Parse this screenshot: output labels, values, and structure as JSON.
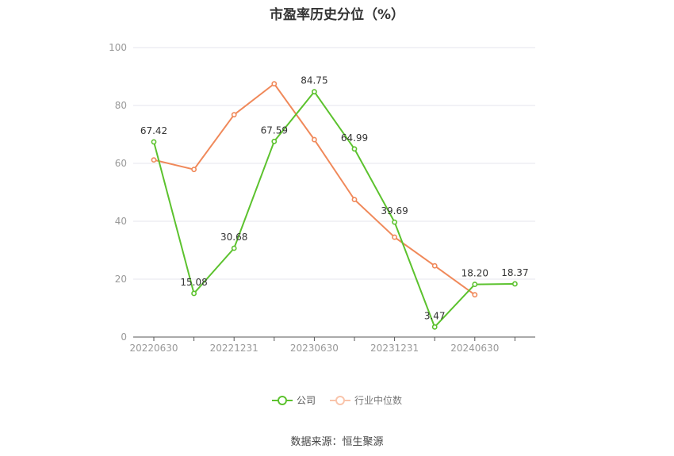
{
  "chart_data": {
    "type": "line",
    "title": "市盈率历史分位（%）",
    "ylim": [
      0,
      100
    ],
    "yticks": [
      0,
      20,
      40,
      60,
      80,
      100
    ],
    "xticks": [
      "20220630",
      "20221231",
      "20230630",
      "20231231",
      "20240630"
    ],
    "grid": true,
    "legend_position": "bottom",
    "series": [
      {
        "name": "公司",
        "color": "#5cc22e",
        "values": [
          67.42,
          15.08,
          30.68,
          67.59,
          84.75,
          64.99,
          39.69,
          3.47,
          18.2,
          18.37
        ],
        "labels": [
          "67.42",
          "15.08",
          "30.68",
          "67.59",
          "84.75",
          "64.99",
          "39.69",
          "3.47",
          "18.20",
          "18.37"
        ]
      },
      {
        "name": "行业中位数",
        "color": "#f0895a",
        "values": [
          61.2,
          57.9,
          76.8,
          87.5,
          68.2,
          47.5,
          34.5,
          24.6,
          14.6
        ]
      }
    ]
  },
  "source": "数据来源：恒生聚源"
}
